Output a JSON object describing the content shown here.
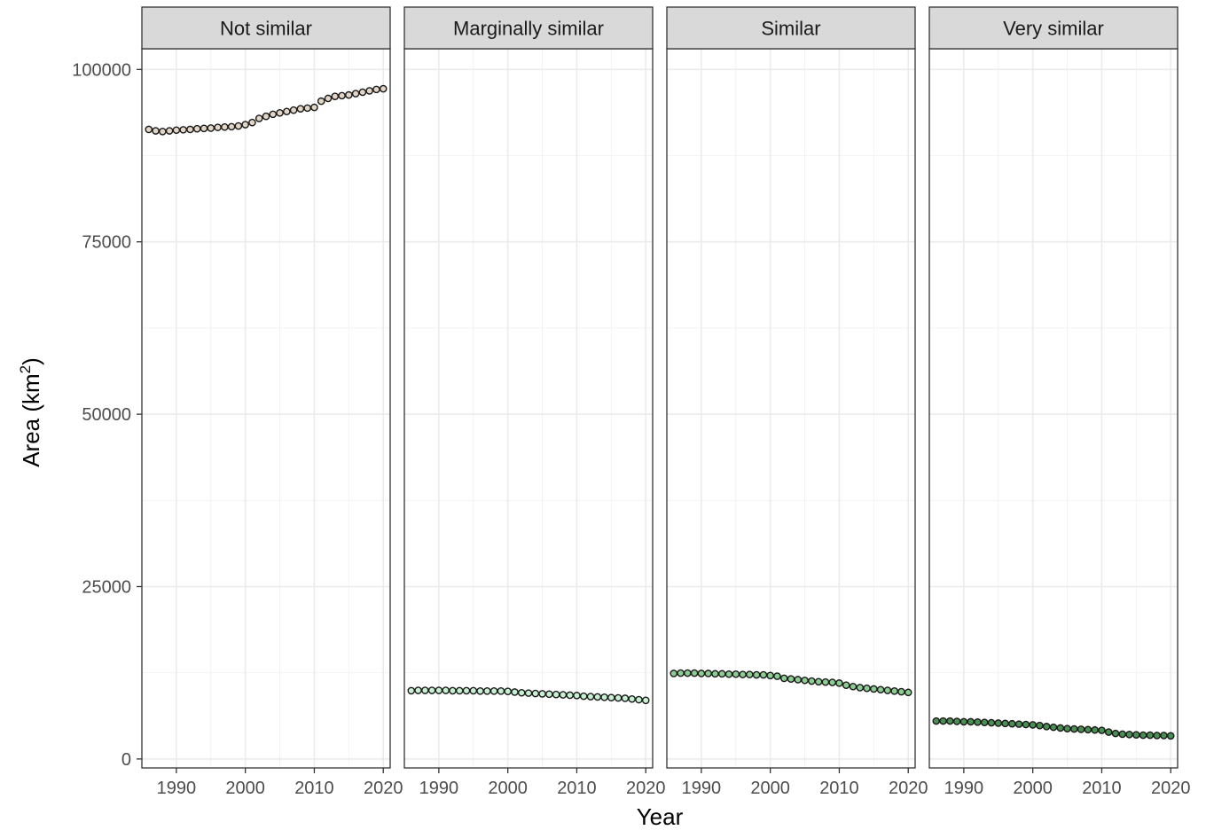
{
  "chart_data": {
    "type": "scatter",
    "title": "",
    "xlabel": "Year",
    "ylabel": "Area (km",
    "ylabel_superscript": "2",
    "ylabel_close": ")",
    "xlim": [
      1985,
      2021
    ],
    "ylim": [
      -1300,
      103000
    ],
    "x_ticks": [
      1990,
      2000,
      2010,
      2020
    ],
    "x_tick_labels": [
      "1990",
      "2000",
      "2010",
      "2020"
    ],
    "y_ticks": [
      0,
      25000,
      50000,
      75000,
      100000
    ],
    "y_tick_labels": [
      "0",
      "25000",
      "50000",
      "75000",
      "100000"
    ],
    "grid": true,
    "x": [
      1986,
      1987,
      1988,
      1989,
      1990,
      1991,
      1992,
      1993,
      1994,
      1995,
      1996,
      1997,
      1998,
      1999,
      2000,
      2001,
      2002,
      2003,
      2004,
      2005,
      2006,
      2007,
      2008,
      2009,
      2010,
      2011,
      2012,
      2013,
      2014,
      2015,
      2016,
      2017,
      2018,
      2019,
      2020
    ],
    "panels": [
      {
        "name": "Not similar",
        "color": "#e3d6c6",
        "values": [
          91300,
          91100,
          91000,
          91100,
          91200,
          91250,
          91300,
          91400,
          91450,
          91500,
          91600,
          91650,
          91700,
          91800,
          92000,
          92300,
          92900,
          93200,
          93500,
          93700,
          93900,
          94100,
          94300,
          94400,
          94500,
          95400,
          95800,
          96100,
          96200,
          96300,
          96500,
          96700,
          96900,
          97100,
          97200
        ]
      },
      {
        "name": "Marginally similar",
        "color": "#c8f0d2",
        "values": [
          9900,
          9950,
          9950,
          9950,
          9950,
          9950,
          9900,
          9900,
          9900,
          9900,
          9850,
          9850,
          9850,
          9850,
          9800,
          9700,
          9600,
          9550,
          9500,
          9450,
          9400,
          9350,
          9300,
          9250,
          9200,
          9100,
          9050,
          9000,
          8950,
          8900,
          8850,
          8800,
          8700,
          8600,
          8500
        ]
      },
      {
        "name": "Similar",
        "color": "#8dcc92",
        "values": [
          12400,
          12450,
          12450,
          12450,
          12400,
          12400,
          12350,
          12350,
          12300,
          12300,
          12250,
          12250,
          12200,
          12200,
          12100,
          12000,
          11700,
          11600,
          11500,
          11400,
          11300,
          11200,
          11150,
          11100,
          11000,
          10700,
          10500,
          10350,
          10250,
          10150,
          10050,
          9950,
          9850,
          9750,
          9650
        ]
      },
      {
        "name": "Very similar",
        "color": "#4a8f54",
        "values": [
          5500,
          5500,
          5500,
          5450,
          5400,
          5400,
          5350,
          5300,
          5250,
          5200,
          5150,
          5100,
          5050,
          5000,
          4950,
          4850,
          4700,
          4600,
          4500,
          4400,
          4350,
          4300,
          4250,
          4200,
          4150,
          3900,
          3700,
          3600,
          3550,
          3500,
          3450,
          3450,
          3400,
          3400,
          3350
        ]
      }
    ]
  }
}
